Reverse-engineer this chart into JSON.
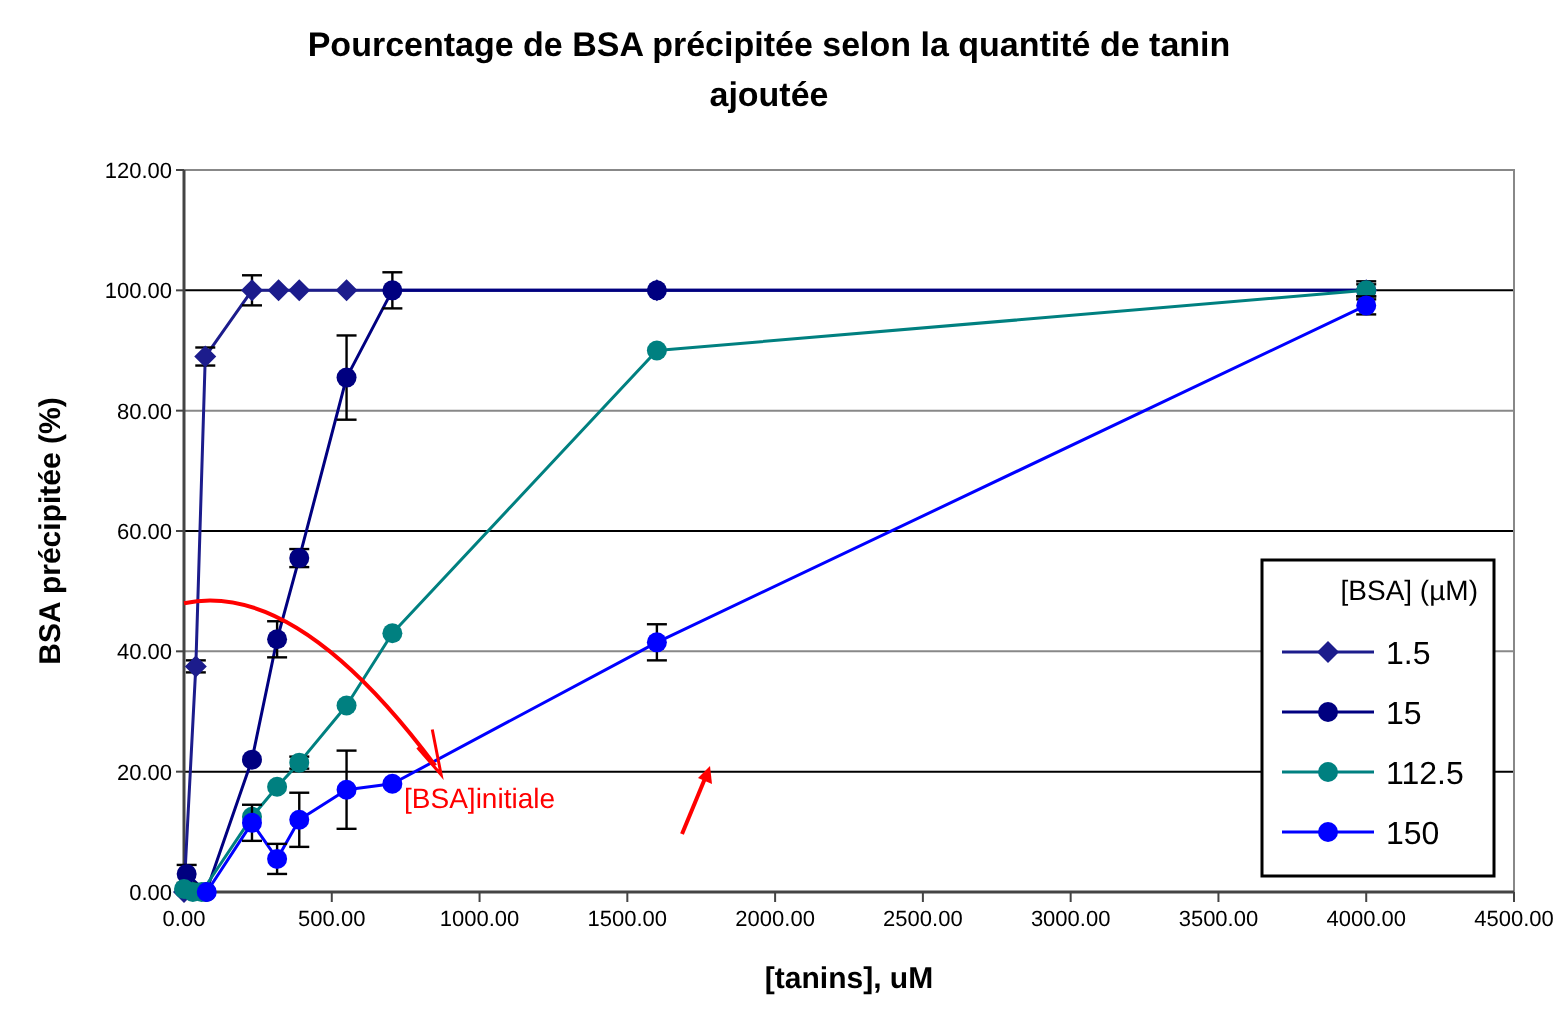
{
  "chart_data": {
    "type": "line",
    "title": "Pourcentage de BSA précipitée selon la quantité de tanin ajoutée",
    "xlabel": "[tanins], uM",
    "ylabel": "BSA précipitée (%)",
    "legend_title": "[BSA] (µM)",
    "legend": "bottom right",
    "grid": "y",
    "line_style": "solid",
    "xlim": [
      0,
      4500
    ],
    "xticks": [
      {
        "value": 0,
        "label": "0.00"
      },
      {
        "value": 500,
        "label": "500.00"
      },
      {
        "value": 1000,
        "label": "1000.00"
      },
      {
        "value": 1500,
        "label": "1500.00"
      },
      {
        "value": 2000,
        "label": "2000.00"
      },
      {
        "value": 2500,
        "label": "2500.00"
      },
      {
        "value": 3000,
        "label": "3000.00"
      },
      {
        "value": 3500,
        "label": "3500.00"
      },
      {
        "value": 4000,
        "label": "4000.00"
      },
      {
        "value": 4500,
        "label": "4500.00"
      }
    ],
    "ylim": [
      0,
      120
    ],
    "yticks": [
      {
        "value": 0,
        "label": "0.00"
      },
      {
        "value": 20,
        "label": "20.00"
      },
      {
        "value": 40,
        "label": "40.00"
      },
      {
        "value": 60,
        "label": "60.00"
      },
      {
        "value": 80,
        "label": "80.00"
      },
      {
        "value": 100,
        "label": "100.00"
      },
      {
        "value": 120,
        "label": "120.00"
      }
    ],
    "annotations": [
      "[BSA]initiale"
    ],
    "series": [
      {
        "name": "1.5",
        "color": "#1c1c8c",
        "marker": "diamond",
        "x": [
          0,
          40,
          72,
          230,
          320,
          390,
          550,
          1600,
          4000
        ],
        "values": [
          0,
          37.5,
          89,
          100,
          100,
          100,
          100,
          100,
          100
        ],
        "errors": [
          null,
          1,
          1.5,
          2.5,
          null,
          null,
          null,
          null,
          null
        ]
      },
      {
        "name": "15",
        "color": "#000080",
        "marker": "circle",
        "x": [
          9,
          75,
          230,
          315,
          390,
          550,
          705,
          1600,
          4000
        ],
        "values": [
          3,
          0,
          22,
          42,
          55.5,
          85.5,
          100,
          100,
          100
        ],
        "errors": [
          1.5,
          null,
          null,
          3,
          1.5,
          7,
          3,
          null,
          1.5
        ]
      },
      {
        "name": "112.5",
        "color": "#008080",
        "marker": "circle",
        "x": [
          0,
          30,
          60,
          230,
          315,
          390,
          550,
          705,
          1600,
          4000
        ],
        "values": [
          0.5,
          0,
          0,
          12.5,
          17.5,
          21.5,
          31,
          43,
          90,
          100
        ],
        "errors": [
          null,
          null,
          null,
          null,
          null,
          1,
          null,
          null,
          null,
          1
        ]
      },
      {
        "name": "150",
        "color": "#0000ff",
        "marker": "circle",
        "x": [
          77,
          230,
          315,
          390,
          550,
          705,
          1600,
          4000
        ],
        "values": [
          0,
          11.5,
          5.5,
          12,
          17,
          18,
          41.5,
          97.5
        ],
        "errors": [
          null,
          3,
          2.5,
          4.5,
          6.5,
          null,
          3,
          1.5
        ]
      }
    ]
  }
}
